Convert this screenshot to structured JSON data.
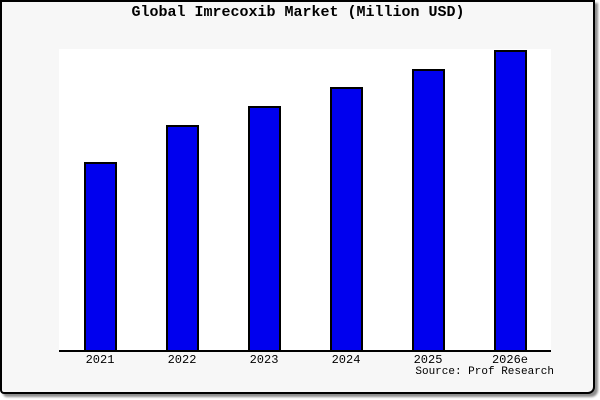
{
  "chart_data": {
    "type": "bar",
    "title": "Global Imrecoxib Market (Million USD)",
    "categories": [
      "2021",
      "2022",
      "2023",
      "2024",
      "2025",
      "2026e"
    ],
    "values": [
      62.6,
      74.8,
      81.1,
      87.4,
      93.4,
      99.7
    ],
    "ylim": [
      0,
      100
    ],
    "xlabel": "",
    "ylabel": "",
    "grid": false,
    "legend": false,
    "bar_color": "#0000ee",
    "bar_border_color": "#000000",
    "annotation": "Source: Prof Research"
  },
  "footer": {
    "source_label": "Source: Prof Research"
  },
  "colors": {
    "page_background": "#f7f7f7",
    "plot_background": "#ffffff",
    "frame_border": "#000000",
    "text": "#000000"
  }
}
